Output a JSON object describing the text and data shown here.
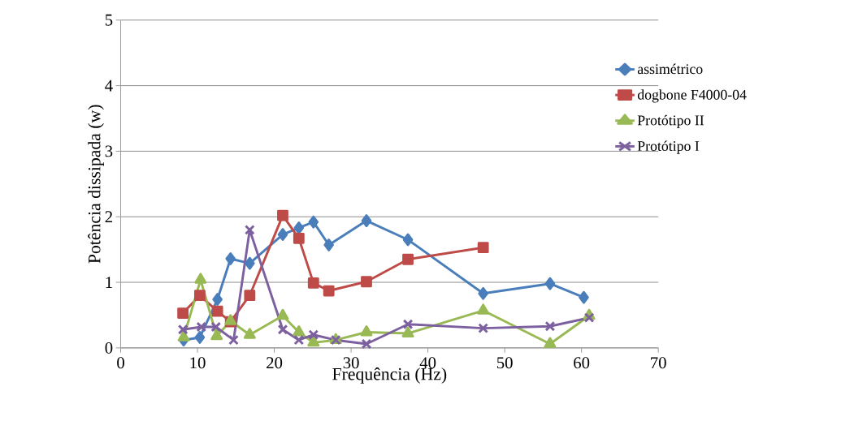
{
  "chart_data": {
    "type": "line",
    "xlabel": "Frequência (Hz)",
    "ylabel": "Potência dissipada (w)",
    "xlim": [
      0,
      70
    ],
    "xticks": [
      0,
      10,
      20,
      30,
      40,
      50,
      60,
      70
    ],
    "ylim": [
      0,
      5
    ],
    "yticks": [
      0,
      1,
      2,
      3,
      4,
      5
    ],
    "grid": "y",
    "legend": "right",
    "series": [
      {
        "name": "assimétrico",
        "color": "#4a7ebb",
        "marker": "diamond",
        "x": [
          8.2,
          10.3,
          12.6,
          14.3,
          16.8,
          21.1,
          23.2,
          25.1,
          27.1,
          32,
          37.4,
          47.2,
          55.9,
          60.3
        ],
        "values": [
          0.12,
          0.16,
          0.74,
          1.36,
          1.29,
          1.73,
          1.83,
          1.92,
          1.57,
          1.94,
          1.65,
          0.83,
          0.98,
          0.77
        ]
      },
      {
        "name": "dogbone F4000-04",
        "color": "#be4b48",
        "marker": "square",
        "x": [
          8.1,
          10.3,
          12.6,
          14.3,
          16.8,
          21.1,
          23.2,
          25.1,
          27.1,
          32,
          37.4,
          47.2
        ],
        "values": [
          0.53,
          0.8,
          0.56,
          0.4,
          0.8,
          2.02,
          1.67,
          0.99,
          0.87,
          1.01,
          1.35,
          1.53
        ]
      },
      {
        "name": "Protótipo II",
        "color": "#98b954",
        "marker": "triangle",
        "x": [
          8.2,
          10.4,
          12.5,
          14.3,
          16.8,
          21.1,
          23.2,
          25.1,
          28,
          32,
          37.4,
          47.2,
          55.9,
          61
        ],
        "values": [
          0.16,
          1.04,
          0.18,
          0.41,
          0.2,
          0.49,
          0.24,
          0.08,
          0.12,
          0.24,
          0.22,
          0.57,
          0.06,
          0.49
        ]
      },
      {
        "name": "Protótipo I",
        "color": "#7d60a0",
        "marker": "cross",
        "x": [
          8.1,
          10.5,
          12.4,
          14.7,
          16.8,
          21.1,
          23.2,
          25.1,
          28,
          32,
          37.4,
          47.2,
          55.9,
          61
        ],
        "values": [
          0.28,
          0.32,
          0.32,
          0.12,
          1.8,
          0.28,
          0.12,
          0.2,
          0.12,
          0.06,
          0.36,
          0.3,
          0.33,
          0.46
        ]
      }
    ]
  }
}
